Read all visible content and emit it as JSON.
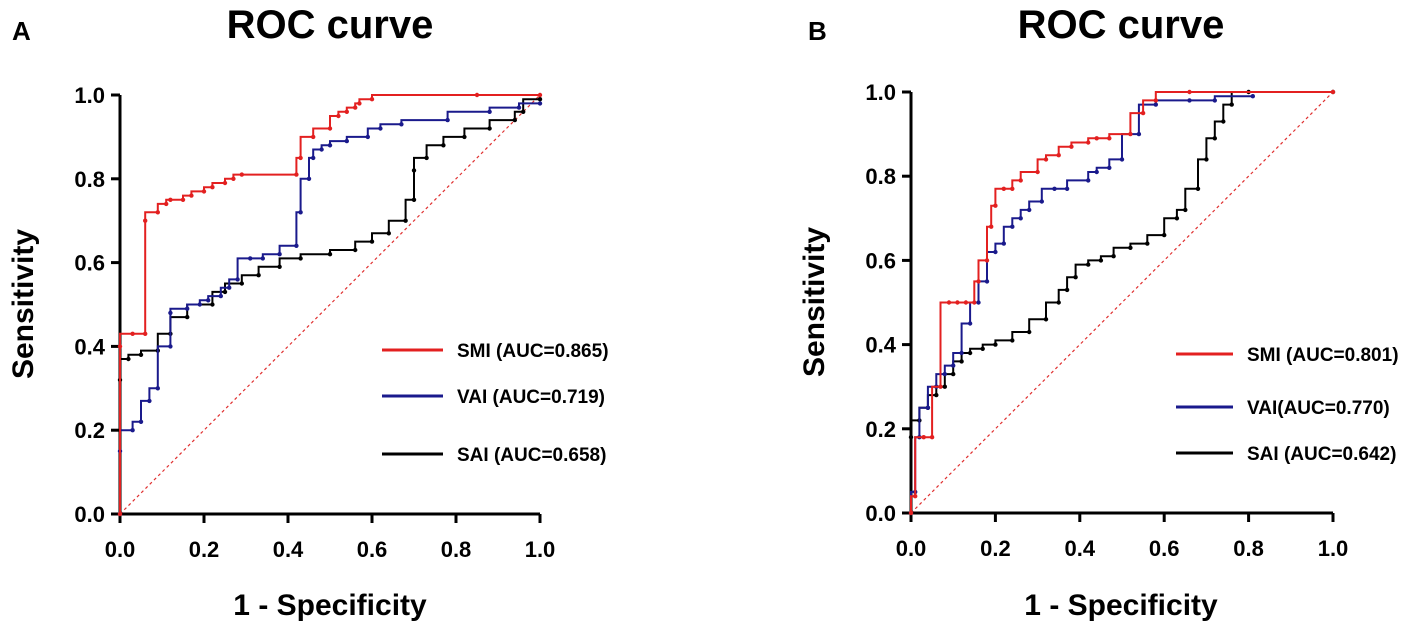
{
  "chart_data": [
    {
      "panel": "A",
      "type": "line",
      "title": "ROC curve",
      "xlabel": "1 - Specificity",
      "ylabel": "Sensitivity",
      "xlim": [
        0,
        1
      ],
      "ylim": [
        0,
        1
      ],
      "xticks": [
        "0.0",
        "0.2",
        "0.4",
        "0.6",
        "0.8",
        "1.0"
      ],
      "yticks": [
        "0.0",
        "0.2",
        "0.4",
        "0.6",
        "0.8",
        "1.0"
      ],
      "legend_position": "right",
      "reference_line": {
        "x": [
          0,
          1
        ],
        "y": [
          0,
          1
        ],
        "color": "#e03030",
        "style": "dashed"
      },
      "series": [
        {
          "name": "SMI (AUC=0.865)",
          "color": "#e32020",
          "x": [
            0,
            0,
            0.03,
            0.06,
            0.06,
            0.09,
            0.11,
            0.12,
            0.15,
            0.17,
            0.2,
            0.22,
            0.25,
            0.27,
            0.29,
            0.42,
            0.43,
            0.46,
            0.5,
            0.52,
            0.54,
            0.56,
            0.57,
            0.6,
            0.85,
            1.0
          ],
          "y": [
            0,
            0.4,
            0.43,
            0.43,
            0.7,
            0.72,
            0.74,
            0.75,
            0.75,
            0.76,
            0.77,
            0.78,
            0.79,
            0.8,
            0.81,
            0.81,
            0.85,
            0.9,
            0.92,
            0.95,
            0.96,
            0.97,
            0.98,
            0.99,
            1.0,
            1.0
          ]
        },
        {
          "name": "VAI (AUC=0.719)",
          "color": "#1a1a8c",
          "x": [
            0,
            0,
            0.03,
            0.05,
            0.07,
            0.09,
            0.12,
            0.12,
            0.16,
            0.19,
            0.21,
            0.24,
            0.26,
            0.28,
            0.31,
            0.34,
            0.38,
            0.42,
            0.43,
            0.45,
            0.46,
            0.48,
            0.5,
            0.54,
            0.59,
            0.62,
            0.67,
            0.78,
            0.88,
            0.95,
            1.0
          ],
          "y": [
            0,
            0.15,
            0.2,
            0.22,
            0.27,
            0.3,
            0.4,
            0.48,
            0.49,
            0.5,
            0.51,
            0.52,
            0.54,
            0.56,
            0.61,
            0.61,
            0.62,
            0.64,
            0.72,
            0.8,
            0.85,
            0.87,
            0.88,
            0.89,
            0.9,
            0.92,
            0.93,
            0.94,
            0.96,
            0.97,
            0.98
          ]
        },
        {
          "name": "SAI (AUC=0.658)",
          "color": "#000000",
          "x": [
            0,
            0,
            0.02,
            0.05,
            0.09,
            0.12,
            0.16,
            0.22,
            0.25,
            0.29,
            0.33,
            0.38,
            0.43,
            0.5,
            0.56,
            0.6,
            0.64,
            0.68,
            0.7,
            0.7,
            0.73,
            0.77,
            0.82,
            0.88,
            0.94,
            0.96,
            1.0
          ],
          "y": [
            0,
            0.32,
            0.37,
            0.38,
            0.39,
            0.43,
            0.47,
            0.5,
            0.53,
            0.55,
            0.57,
            0.59,
            0.61,
            0.62,
            0.63,
            0.65,
            0.67,
            0.7,
            0.75,
            0.82,
            0.85,
            0.88,
            0.9,
            0.92,
            0.94,
            0.96,
            0.99
          ]
        }
      ]
    },
    {
      "panel": "B",
      "type": "line",
      "title": "ROC curve",
      "xlabel": "1 - Specificity",
      "ylabel": "Sensitivity",
      "xlim": [
        0,
        1
      ],
      "ylim": [
        0,
        1
      ],
      "xticks": [
        "0.0",
        "0.2",
        "0.4",
        "0.6",
        "0.8",
        "1.0"
      ],
      "yticks": [
        "0.0",
        "0.2",
        "0.4",
        "0.6",
        "0.8",
        "1.0"
      ],
      "legend_position": "right",
      "reference_line": {
        "x": [
          0,
          1
        ],
        "y": [
          0,
          1
        ],
        "color": "#e03030",
        "style": "dashed"
      },
      "series": [
        {
          "name": "SMI (AUC=0.801)",
          "color": "#e32020",
          "x": [
            0,
            0.01,
            0.03,
            0.05,
            0.07,
            0.09,
            0.11,
            0.13,
            0.15,
            0.16,
            0.18,
            0.19,
            0.2,
            0.22,
            0.24,
            0.26,
            0.3,
            0.32,
            0.35,
            0.38,
            0.42,
            0.44,
            0.47,
            0.52,
            0.55,
            0.58,
            0.66,
            1.0
          ],
          "y": [
            0,
            0.04,
            0.18,
            0.18,
            0.3,
            0.5,
            0.5,
            0.5,
            0.5,
            0.55,
            0.6,
            0.68,
            0.73,
            0.77,
            0.77,
            0.79,
            0.81,
            0.84,
            0.85,
            0.87,
            0.88,
            0.89,
            0.89,
            0.9,
            0.95,
            0.98,
            1.0,
            1.0
          ]
        },
        {
          "name": "VAI(AUC=0.770)",
          "color": "#1a1a8c",
          "x": [
            0,
            0.01,
            0.02,
            0.04,
            0.06,
            0.08,
            0.1,
            0.12,
            0.14,
            0.16,
            0.18,
            0.2,
            0.22,
            0.24,
            0.26,
            0.28,
            0.31,
            0.34,
            0.37,
            0.42,
            0.44,
            0.47,
            0.5,
            0.54,
            0.58,
            0.66,
            0.72,
            0.81
          ],
          "y": [
            0,
            0.05,
            0.18,
            0.25,
            0.3,
            0.33,
            0.35,
            0.38,
            0.45,
            0.5,
            0.55,
            0.62,
            0.64,
            0.68,
            0.7,
            0.72,
            0.74,
            0.77,
            0.77,
            0.79,
            0.81,
            0.82,
            0.84,
            0.9,
            0.97,
            0.98,
            0.98,
            0.99
          ]
        },
        {
          "name": "SAI (AUC=0.642)",
          "color": "#000000",
          "x": [
            0,
            0,
            0.02,
            0.04,
            0.06,
            0.08,
            0.1,
            0.12,
            0.14,
            0.17,
            0.2,
            0.24,
            0.28,
            0.32,
            0.35,
            0.37,
            0.39,
            0.42,
            0.45,
            0.48,
            0.52,
            0.56,
            0.6,
            0.63,
            0.65,
            0.68,
            0.7,
            0.72,
            0.74,
            0.76,
            0.8,
            1.0
          ],
          "y": [
            0,
            0.18,
            0.22,
            0.25,
            0.28,
            0.3,
            0.33,
            0.36,
            0.38,
            0.39,
            0.4,
            0.41,
            0.43,
            0.46,
            0.5,
            0.53,
            0.56,
            0.59,
            0.6,
            0.61,
            0.63,
            0.64,
            0.66,
            0.7,
            0.72,
            0.77,
            0.84,
            0.89,
            0.93,
            0.97,
            1.0,
            1.0
          ]
        }
      ]
    }
  ]
}
